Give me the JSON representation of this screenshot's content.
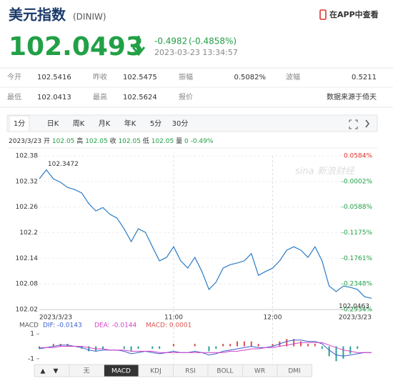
{
  "header": {
    "title": "美元指数",
    "code": "(DINIW)",
    "app_link": "在APP中查看"
  },
  "quote": {
    "price": 102.0493,
    "change": -0.4982,
    "change_pct": "(-0.4858%)",
    "time": "2023-03-23 13:34:57"
  },
  "stats": {
    "rows": [
      [
        {
          "label": "今开",
          "value": "102.5416"
        },
        {
          "label": "昨收",
          "value": "102.5475"
        },
        {
          "label": "振幅",
          "value": "0.5082%"
        },
        {
          "label": "波幅",
          "value": "0.5211"
        }
      ],
      [
        {
          "label": "最低",
          "value": "102.0413"
        },
        {
          "label": "最高",
          "value": "102.5624"
        },
        {
          "label": "报价"
        },
        {
          "value": "数据来源于倚天"
        }
      ]
    ]
  },
  "tabs": {
    "items": [
      "1分",
      "日K",
      "周K",
      "月K",
      "年K",
      "5分",
      "30分"
    ],
    "active": 0
  },
  "info": {
    "date": "2023/3/23",
    "fields": [
      [
        "开",
        "102.05"
      ],
      [
        "高",
        "102.05"
      ],
      [
        "收",
        "102.05"
      ],
      [
        "低",
        "102.05"
      ],
      [
        "量",
        "0"
      ]
    ],
    "change": "-0.49%"
  },
  "watermark": "sina 新浪财经",
  "chart_data": [
    {
      "type": "line",
      "color": "#2b7bc4",
      "categories": [
        "2023/3/23",
        null,
        null,
        null,
        null,
        null,
        null,
        null,
        null,
        null,
        null,
        null,
        null,
        null,
        null,
        null,
        null,
        null,
        null,
        "11:00",
        null,
        null,
        null,
        null,
        null,
        null,
        null,
        null,
        null,
        null,
        null,
        null,
        null,
        "12:00",
        null,
        null,
        null,
        null,
        null,
        null,
        null,
        null,
        null,
        null,
        null,
        null,
        null,
        "2023/3/23"
      ],
      "values": [
        102.326,
        102.3472,
        102.326,
        102.318,
        102.306,
        102.301,
        102.293,
        102.268,
        102.251,
        102.259,
        102.243,
        102.234,
        102.209,
        102.179,
        102.209,
        102.201,
        102.167,
        102.134,
        102.142,
        102.167,
        102.134,
        102.117,
        102.142,
        102.109,
        102.067,
        102.084,
        102.117,
        102.125,
        102.129,
        102.134,
        102.151,
        102.1,
        102.109,
        102.117,
        102.134,
        102.159,
        102.167,
        102.159,
        102.142,
        102.167,
        102.134,
        102.075,
        102.062,
        102.075,
        102.072,
        102.067,
        102.05,
        102.0463
      ],
      "ylim": [
        102.02,
        102.38
      ],
      "yticks": [
        102.38,
        102.32,
        102.26,
        102.2,
        102.14,
        102.08,
        102.02
      ],
      "y2lim": [
        -0.2934,
        0.0584
      ],
      "y2ticks": [
        {
          "value": 0.0584,
          "label": "0.0584%"
        },
        {
          "value": -0.0002,
          "label": "-0.0002%"
        },
        {
          "value": -0.0588,
          "label": "-0.0588%"
        },
        {
          "value": -0.1175,
          "label": "-0.1175%"
        },
        {
          "value": -0.1761,
          "label": "-0.1761%"
        },
        {
          "value": -0.2348,
          "label": "-0.2348%"
        },
        {
          "value": -0.2934,
          "label": "-0.2934%"
        }
      ],
      "up_color": "#e0312b",
      "down_color": "#22a046",
      "grid": true
    },
    {
      "type": "macd",
      "title": "MACD",
      "ylim": [
        -1.3,
        1.3
      ],
      "yticks": [
        1,
        -1
      ],
      "series": [
        {
          "name": "DIF: -0.0143",
          "color": "#3a5fd0",
          "values": [
            -0.2,
            -0.1,
            0,
            0.1,
            0.1,
            0,
            -0.1,
            -0.3,
            -0.4,
            -0.3,
            -0.3,
            -0.3,
            -0.4,
            -0.6,
            -0.5,
            -0.4,
            -0.5,
            -0.6,
            -0.5,
            -0.4,
            -0.5,
            -0.5,
            -0.4,
            -0.5,
            -0.7,
            -0.6,
            -0.4,
            -0.3,
            -0.2,
            -0.1,
            0,
            -0.1,
            -0.1,
            0,
            0.2,
            0.4,
            0.5,
            0.5,
            0.4,
            0.4,
            0.2,
            -0.3,
            -0.7,
            -0.8,
            -0.7,
            -0.6,
            -0.5,
            -0.5
          ]
        },
        {
          "name": "DEA: -0.0144",
          "color": "#d23fc8",
          "values": [
            -0.1,
            -0.1,
            -0.1,
            0,
            0,
            0,
            0,
            -0.1,
            -0.2,
            -0.2,
            -0.3,
            -0.3,
            -0.3,
            -0.4,
            -0.4,
            -0.4,
            -0.4,
            -0.5,
            -0.5,
            -0.5,
            -0.5,
            -0.5,
            -0.5,
            -0.5,
            -0.5,
            -0.5,
            -0.5,
            -0.4,
            -0.4,
            -0.3,
            -0.2,
            -0.2,
            -0.1,
            -0.1,
            0,
            0.1,
            0.2,
            0.3,
            0.3,
            0.3,
            0.3,
            0.1,
            -0.1,
            -0.3,
            -0.4,
            -0.5,
            -0.5,
            -0.5
          ]
        }
      ],
      "bars": {
        "name": "MACD: 0.0001",
        "up_color": "#d9534f",
        "down_color": "#2aa198",
        "values": [
          -0.2,
          0,
          0.2,
          0.2,
          0.2,
          0,
          -0.2,
          -0.4,
          -0.4,
          -0.2,
          0,
          0,
          -0.2,
          -0.4,
          -0.2,
          0,
          -0.2,
          -0.2,
          0,
          0.2,
          0,
          0,
          0.2,
          0,
          -0.4,
          -0.2,
          0.2,
          0.2,
          0.4,
          0.4,
          0.4,
          0.2,
          0,
          0.2,
          0.4,
          0.6,
          0.6,
          0.4,
          0.2,
          0.2,
          -0.2,
          -0.8,
          -1.2,
          -1,
          -0.6,
          -0.2,
          0,
          0
        ]
      }
    }
  ],
  "indicators": {
    "arrows": [
      "▲",
      "▼"
    ],
    "tabs": [
      "无",
      "MACD",
      "KDJ",
      "RSI",
      "BOLL",
      "WR",
      "DMI"
    ],
    "active": 1
  }
}
